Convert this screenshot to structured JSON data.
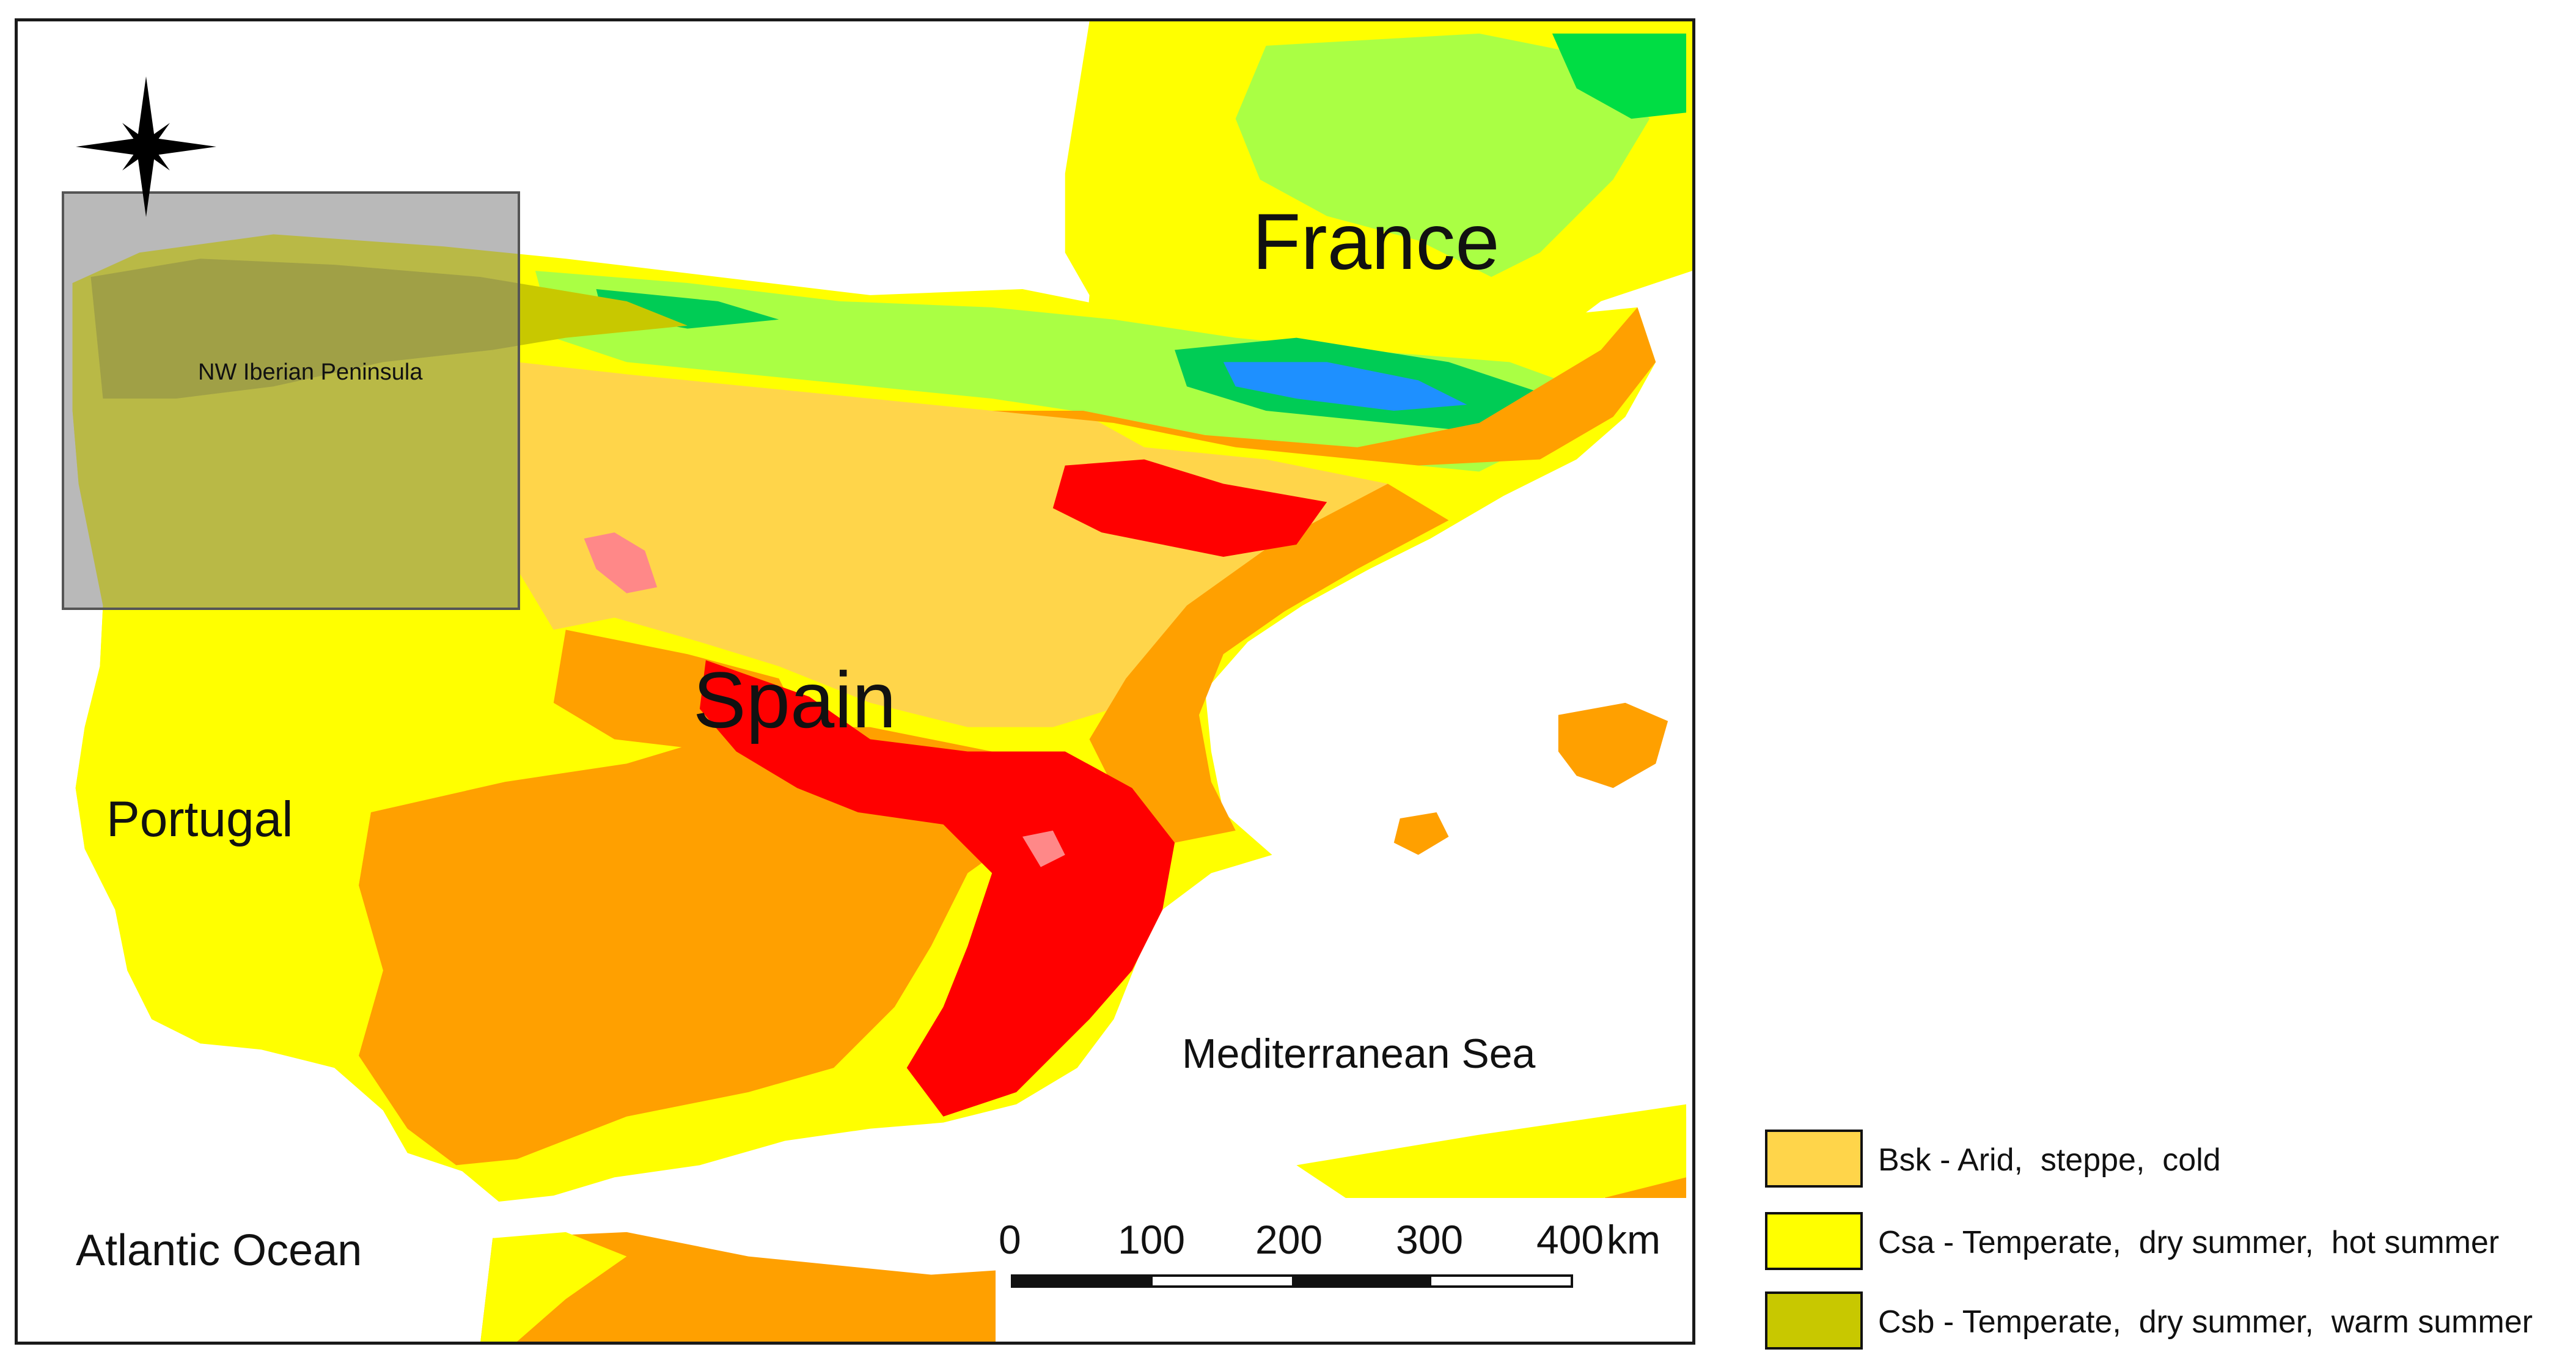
{
  "map": {
    "labels": {
      "france": "France",
      "spain": "Spain",
      "portugal": "Portugal",
      "atlantic": "Atlantic Ocean",
      "mediterranean": "Mediterranean Sea",
      "inset": "NW Iberian Peninsula"
    },
    "north_arrow_icon": "compass-star-icon",
    "colors": {
      "sea": "#ffffff",
      "bsk": "#ffd54a",
      "csa": "#ffff00",
      "csb": "#c8c800",
      "bsh": "#ffa000",
      "bwh": "#ff0000",
      "cfb": "#aaff44",
      "dfb": "#00dd44",
      "dfc": "#0099dd",
      "pink": "#ff8888",
      "inset_overlay": "#808080"
    }
  },
  "scale_bar": {
    "ticks": [
      "0",
      "100",
      "200",
      "300",
      "400"
    ],
    "unit": "km"
  },
  "legend": {
    "items": [
      {
        "code": "bsk",
        "label": "Bsk - Arid,  steppe,  cold",
        "color": "#ffd54a"
      },
      {
        "code": "csa",
        "label": "Csa - Temperate,  dry summer,  hot summer",
        "color": "#ffff00"
      },
      {
        "code": "csb",
        "label": "Csb - Temperate,  dry summer,  warm summer",
        "color": "#c8c800"
      }
    ]
  }
}
